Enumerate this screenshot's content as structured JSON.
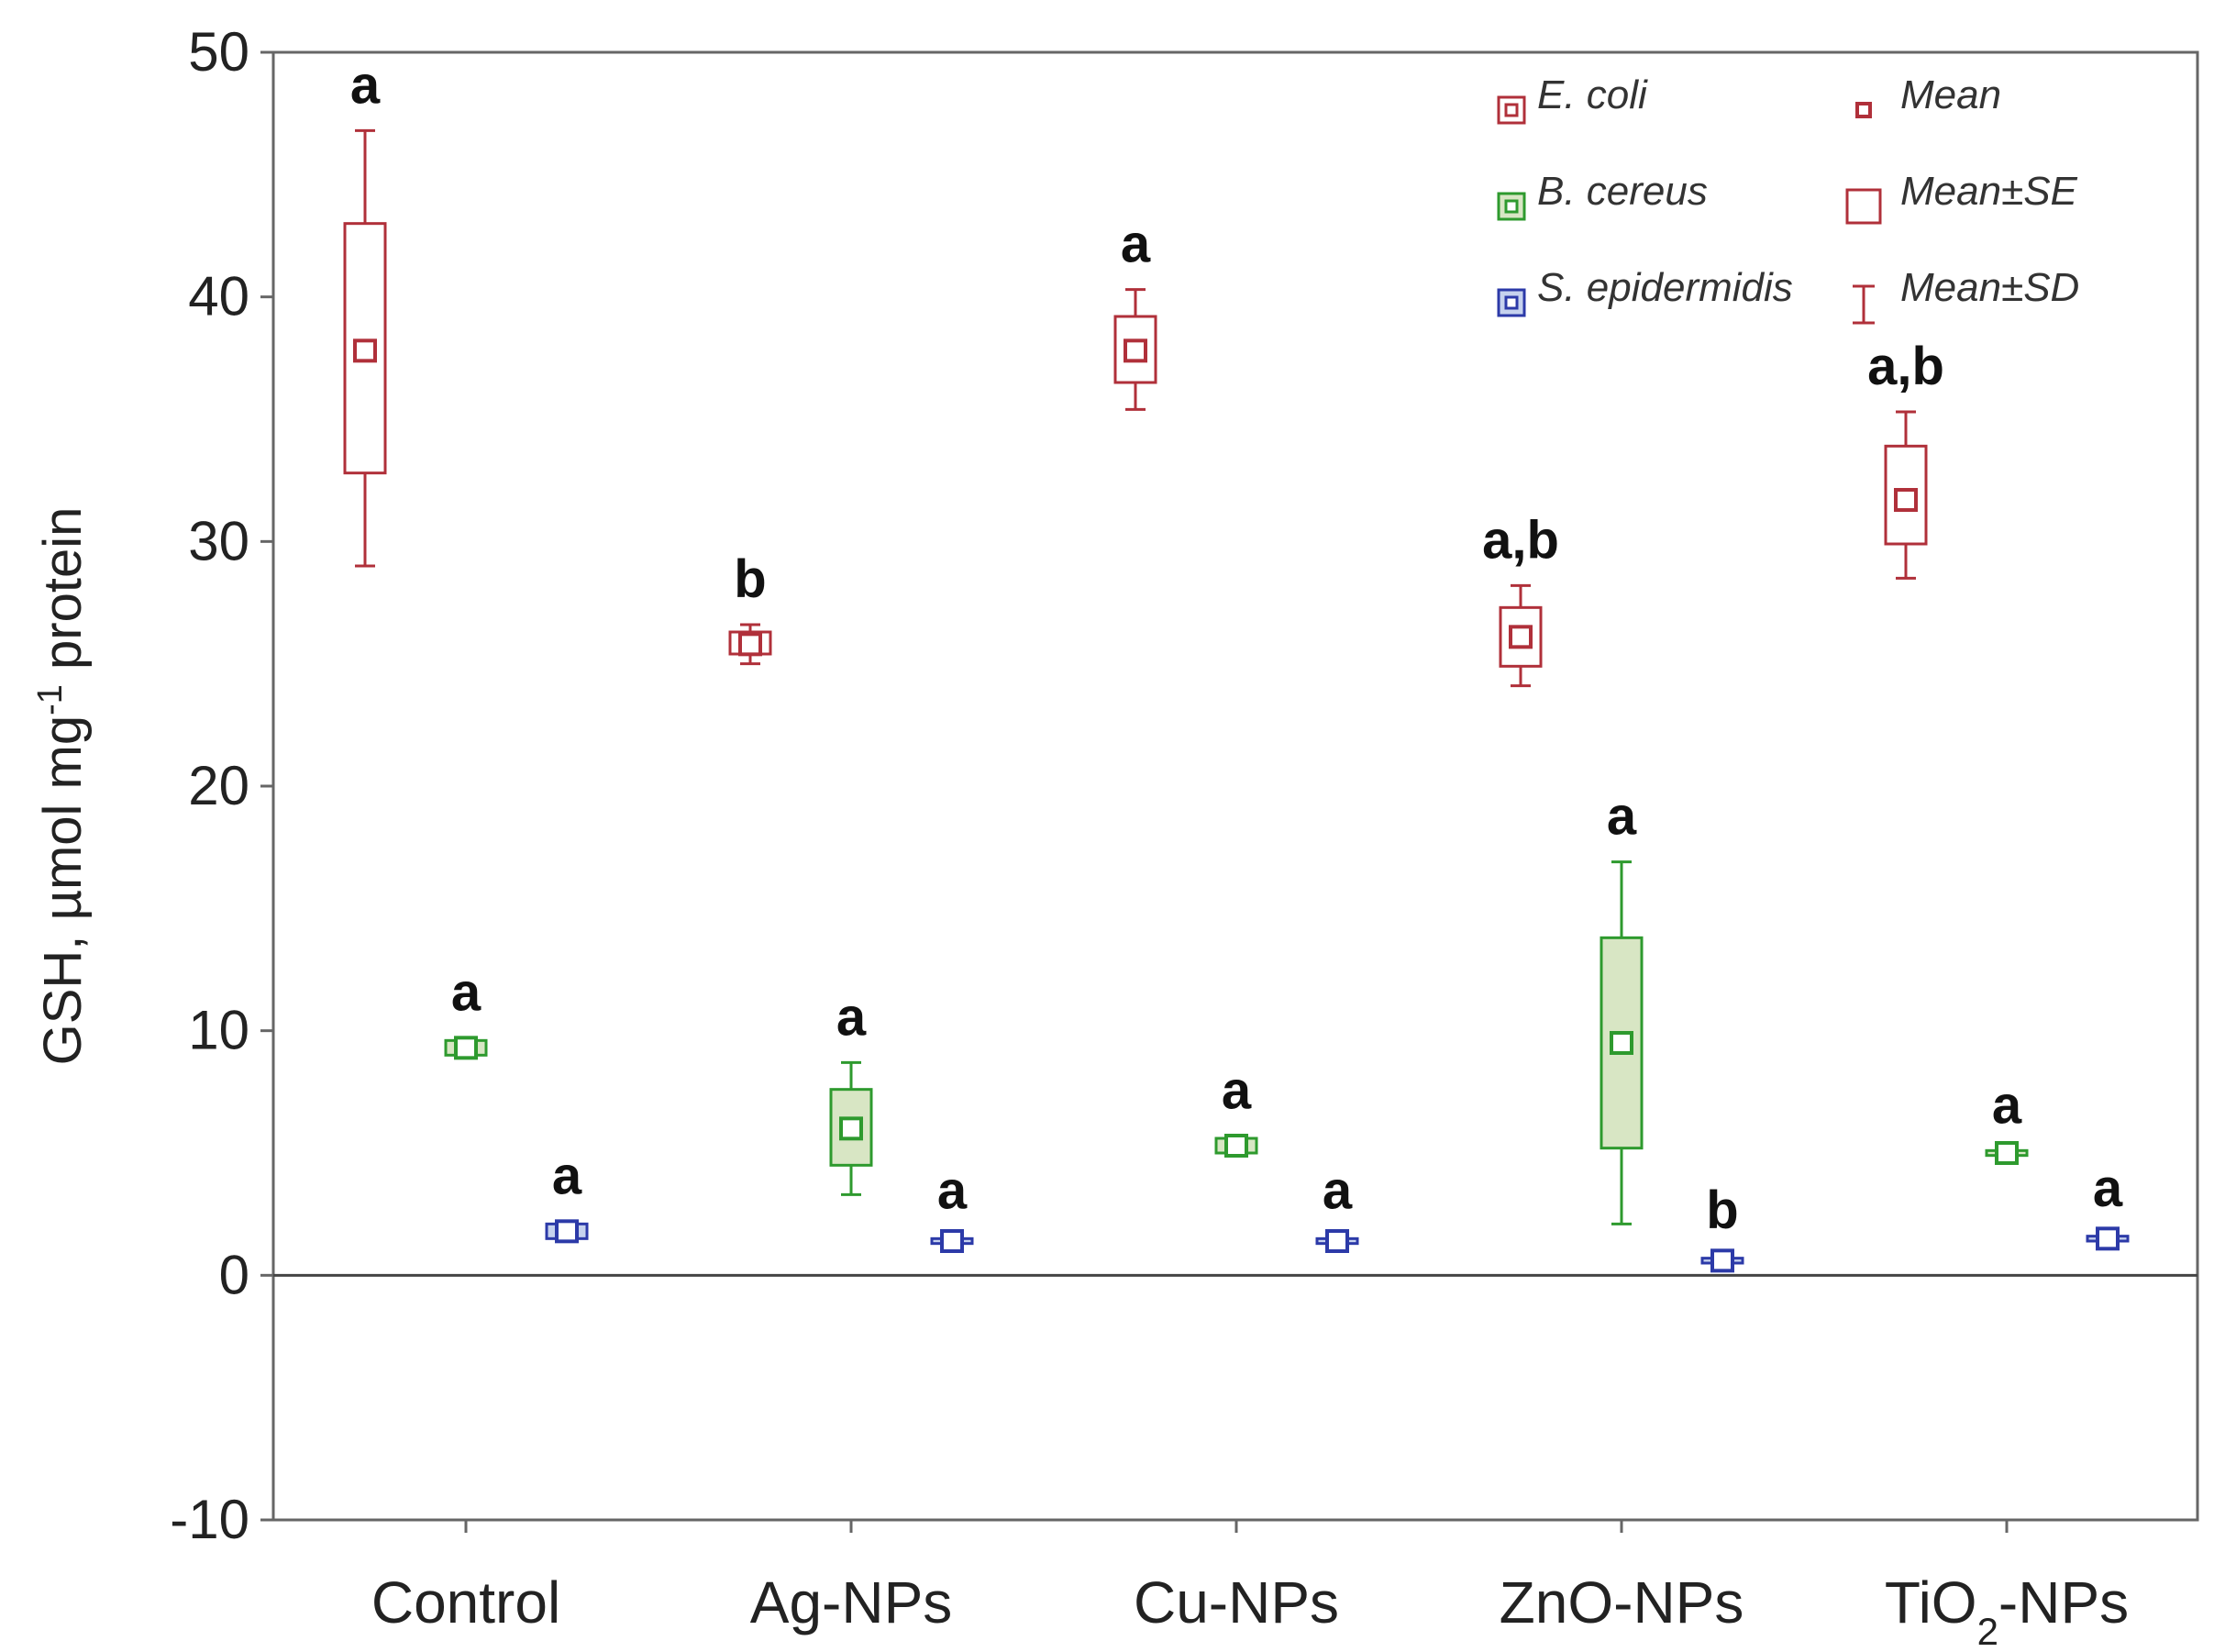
{
  "chart_data": {
    "type": "box",
    "ylabel": "GSH, µmol mg-1 protein",
    "ylabel_parts": {
      "main": "GSH, µmol mg",
      "sup": "-1",
      "rest": " protein"
    },
    "ylim": [
      -10,
      50
    ],
    "yticks": [
      "50",
      "40",
      "30",
      "20",
      "10",
      "0",
      "-10"
    ],
    "ytick_values": [
      50,
      40,
      30,
      20,
      10,
      0,
      -10
    ],
    "zero_line": 0,
    "categories": [
      {
        "label": "Control",
        "base": "Control",
        "sub": "",
        "tail": ""
      },
      {
        "label": "Ag-NPs",
        "base": "Ag-NPs",
        "sub": "",
        "tail": ""
      },
      {
        "label": "Cu-NPs",
        "base": "Cu-NPs",
        "sub": "",
        "tail": ""
      },
      {
        "label": "ZnO-NPs",
        "base": "ZnO-NPs",
        "sub": "",
        "tail": ""
      },
      {
        "label": "TiO2-NPs",
        "base": "TiO",
        "sub": "2",
        "tail": "-NPs"
      }
    ],
    "series": [
      {
        "name": "E. coli",
        "color": "#b0303a",
        "box_fill": "#ffffff",
        "points": [
          {
            "mean": 37.8,
            "se_low": 32.8,
            "se_high": 43.0,
            "sd_low": 29.0,
            "sd_high": 46.8,
            "sig": "a"
          },
          {
            "mean": 25.8,
            "se_low": 25.4,
            "se_high": 26.3,
            "sd_low": 25.0,
            "sd_high": 26.6,
            "sig": "b"
          },
          {
            "mean": 37.8,
            "se_low": 36.5,
            "se_high": 39.2,
            "sd_low": 35.4,
            "sd_high": 40.3,
            "sig": "a"
          },
          {
            "mean": 26.1,
            "se_low": 24.9,
            "se_high": 27.3,
            "sd_low": 24.1,
            "sd_high": 28.2,
            "sig": "a,b"
          },
          {
            "mean": 31.7,
            "se_low": 29.9,
            "se_high": 33.9,
            "sd_low": 28.5,
            "sd_high": 35.3,
            "sig": "a,b"
          }
        ]
      },
      {
        "name": "B. cereus",
        "color": "#2e9a2e",
        "box_fill": "#d8e6c4",
        "points": [
          {
            "mean": 9.3,
            "se_low": 9.0,
            "se_high": 9.6,
            "sd_low": 8.9,
            "sd_high": 9.7,
            "sig": "a"
          },
          {
            "mean": 6.0,
            "se_low": 4.5,
            "se_high": 7.6,
            "sd_low": 3.3,
            "sd_high": 8.7,
            "sig": "a"
          },
          {
            "mean": 5.3,
            "se_low": 5.0,
            "se_high": 5.6,
            "sd_low": 4.9,
            "sd_high": 5.7,
            "sig": "a"
          },
          {
            "mean": 9.5,
            "se_low": 5.2,
            "se_high": 13.8,
            "sd_low": 2.1,
            "sd_high": 16.9,
            "sig": "a"
          },
          {
            "mean": 5.0,
            "se_low": 4.9,
            "se_high": 5.1,
            "sd_low": 4.9,
            "sd_high": 5.1,
            "sig": "a"
          }
        ]
      },
      {
        "name": "S. epidermidis",
        "color": "#2c3aa8",
        "box_fill": "#c6d2ee",
        "points": [
          {
            "mean": 1.8,
            "se_low": 1.5,
            "se_high": 2.1,
            "sd_low": 1.4,
            "sd_high": 2.2,
            "sig": "a"
          },
          {
            "mean": 1.4,
            "se_low": 1.3,
            "se_high": 1.5,
            "sd_low": 1.2,
            "sd_high": 1.6,
            "sig": "a"
          },
          {
            "mean": 1.4,
            "se_low": 1.3,
            "se_high": 1.5,
            "sd_low": 1.2,
            "sd_high": 1.6,
            "sig": "a"
          },
          {
            "mean": 0.6,
            "se_low": 0.5,
            "se_high": 0.7,
            "sd_low": 0.4,
            "sd_high": 0.8,
            "sig": "b"
          },
          {
            "mean": 1.5,
            "se_low": 1.4,
            "se_high": 1.6,
            "sd_low": 1.3,
            "sd_high": 1.7,
            "sig": "a"
          }
        ]
      }
    ],
    "legend": {
      "position": "top-right",
      "series": [
        "E. coli",
        "B. cereus",
        "S. epidermidis"
      ],
      "markers": [
        "Mean",
        "Mean±SE",
        "Mean±SD"
      ]
    }
  }
}
